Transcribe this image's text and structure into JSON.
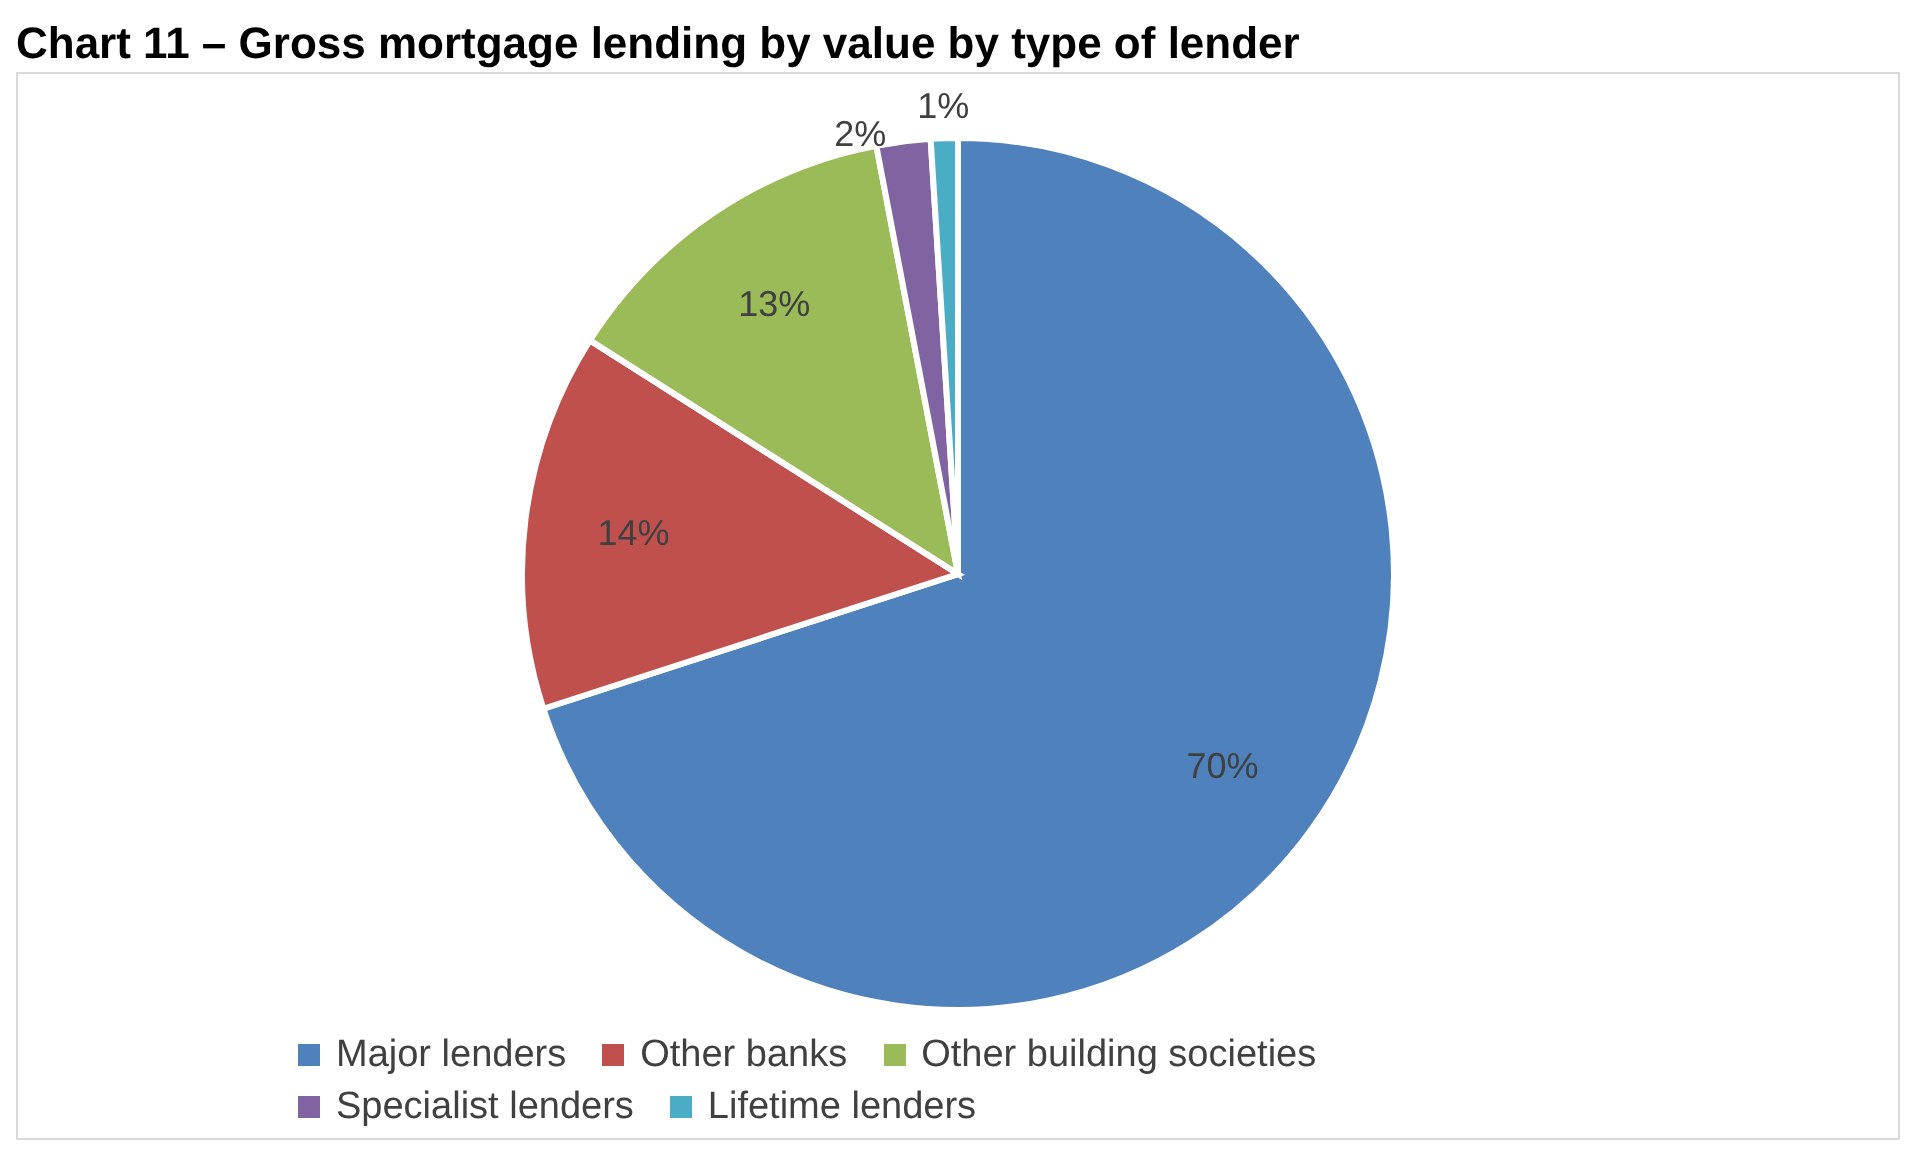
{
  "chart_data": {
    "type": "pie",
    "title": "Chart 11 – Gross mortgage lending by value by type of lender",
    "categories": [
      "Major lenders",
      "Other banks",
      "Other building societies",
      "Specialist lenders",
      "Lifetime lenders"
    ],
    "values": [
      70,
      14,
      13,
      2,
      1
    ],
    "colors": [
      "#4f81bd",
      "#c0504d",
      "#9bbb59",
      "#8064a2",
      "#4bacc6"
    ],
    "value_labels": [
      "70%",
      "14%",
      "13%",
      "2%",
      "1%"
    ],
    "legend": "bottom"
  }
}
